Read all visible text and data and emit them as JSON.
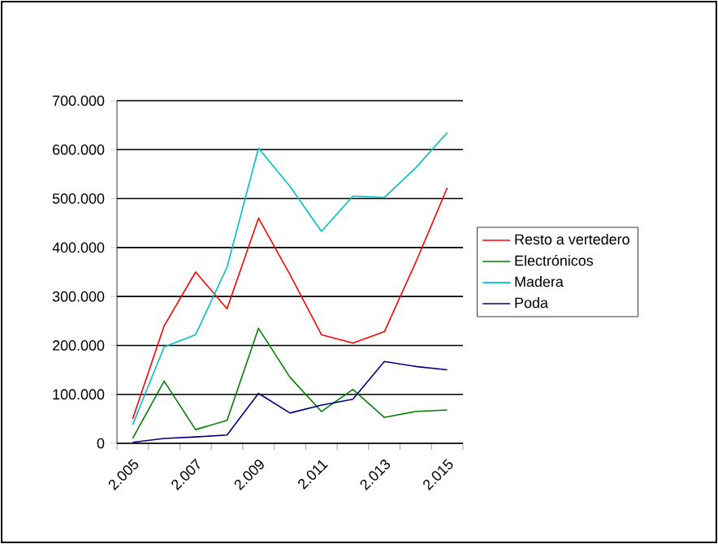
{
  "chart_data": {
    "type": "line",
    "categories": [
      "2.005",
      null,
      "2.007",
      null,
      "2.009",
      null,
      "2.011",
      null,
      "2.013",
      null,
      "2.015"
    ],
    "series": [
      {
        "name": "Resto a vertedero",
        "color": "#ff0000",
        "values": [
          50000,
          240000,
          350000,
          275000,
          460000,
          345000,
          222000,
          205000,
          228000,
          370000,
          522000
        ]
      },
      {
        "name": "Electrónicos",
        "color": "#008000",
        "values": [
          10000,
          127000,
          28000,
          47000,
          235000,
          135000,
          65000,
          110000,
          53000,
          65000,
          68000
        ]
      },
      {
        "name": "Madera",
        "color": "#00c0c0",
        "values": [
          38000,
          197000,
          222000,
          360000,
          603000,
          525000,
          433000,
          505000,
          502000,
          563000,
          635000
        ]
      },
      {
        "name": "Poda",
        "color": "#000080",
        "values": [
          2000,
          10000,
          13000,
          17000,
          102000,
          62000,
          78000,
          90000,
          167000,
          157000,
          150000
        ]
      }
    ],
    "ylim": [
      0,
      700000
    ],
    "yticks": [
      0,
      {
        "value": 100000,
        "label": "100.000"
      },
      {
        "value": 200000,
        "label": "200.000"
      },
      {
        "value": 300000,
        "label": "300.000"
      },
      {
        "value": 400000,
        "label": "400.000"
      },
      {
        "value": 500000,
        "label": "500.000"
      },
      {
        "value": 600000,
        "label": "600.000"
      },
      {
        "value": 700000,
        "label": "700.000"
      }
    ],
    "grid": "y",
    "legend": "right",
    "marker": "none",
    "line_style": "solid"
  }
}
